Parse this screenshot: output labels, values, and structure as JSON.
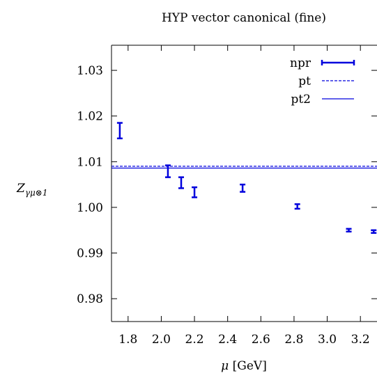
{
  "chart_data": {
    "type": "scatter",
    "title": "HYP vector canonical (fine)",
    "xlabel_symbol": "μ",
    "xlabel_unit": "[GeV]",
    "ylabel_main": "Z",
    "ylabel_sub": "γμ⊗1",
    "xlim": [
      1.7,
      3.3
    ],
    "ylim": [
      0.975,
      1.0355
    ],
    "x_ticks": [
      {
        "v": 1.8,
        "label": "1.8"
      },
      {
        "v": 2.0,
        "label": "2.0"
      },
      {
        "v": 2.2,
        "label": "2.2"
      },
      {
        "v": 2.4,
        "label": "2.4"
      },
      {
        "v": 2.6,
        "label": "2.6"
      },
      {
        "v": 2.8,
        "label": "2.8"
      },
      {
        "v": 3.0,
        "label": "3.0"
      },
      {
        "v": 3.2,
        "label": "3.2"
      }
    ],
    "y_ticks": [
      {
        "v": 0.98,
        "label": "0.98"
      },
      {
        "v": 0.99,
        "label": "0.99"
      },
      {
        "v": 1.0,
        "label": "1.00"
      },
      {
        "v": 1.01,
        "label": "1.01"
      },
      {
        "v": 1.02,
        "label": "1.02"
      },
      {
        "v": 1.03,
        "label": "1.03"
      }
    ],
    "series": [
      {
        "name": "npr",
        "style": "errorbars",
        "color": "#0000dd",
        "points": [
          {
            "x": 1.75,
            "y": 1.0168,
            "err": 0.0017
          },
          {
            "x": 2.04,
            "y": 1.0079,
            "err": 0.0013
          },
          {
            "x": 2.12,
            "y": 1.0054,
            "err": 0.0012
          },
          {
            "x": 2.2,
            "y": 1.0033,
            "err": 0.0011
          },
          {
            "x": 2.49,
            "y": 1.0042,
            "err": 0.0008
          },
          {
            "x": 2.82,
            "y": 1.0002,
            "err": 0.0005
          },
          {
            "x": 3.13,
            "y": 0.995,
            "err": 0.0003
          },
          {
            "x": 3.28,
            "y": 0.9947,
            "err": 0.0003
          }
        ]
      },
      {
        "name": "pt",
        "style": "dashed",
        "color": "#0000dd",
        "y": 1.009
      },
      {
        "name": "pt2",
        "style": "solid",
        "color": "#0000dd",
        "y": 1.0086
      }
    ],
    "legend_position": "top-right"
  }
}
